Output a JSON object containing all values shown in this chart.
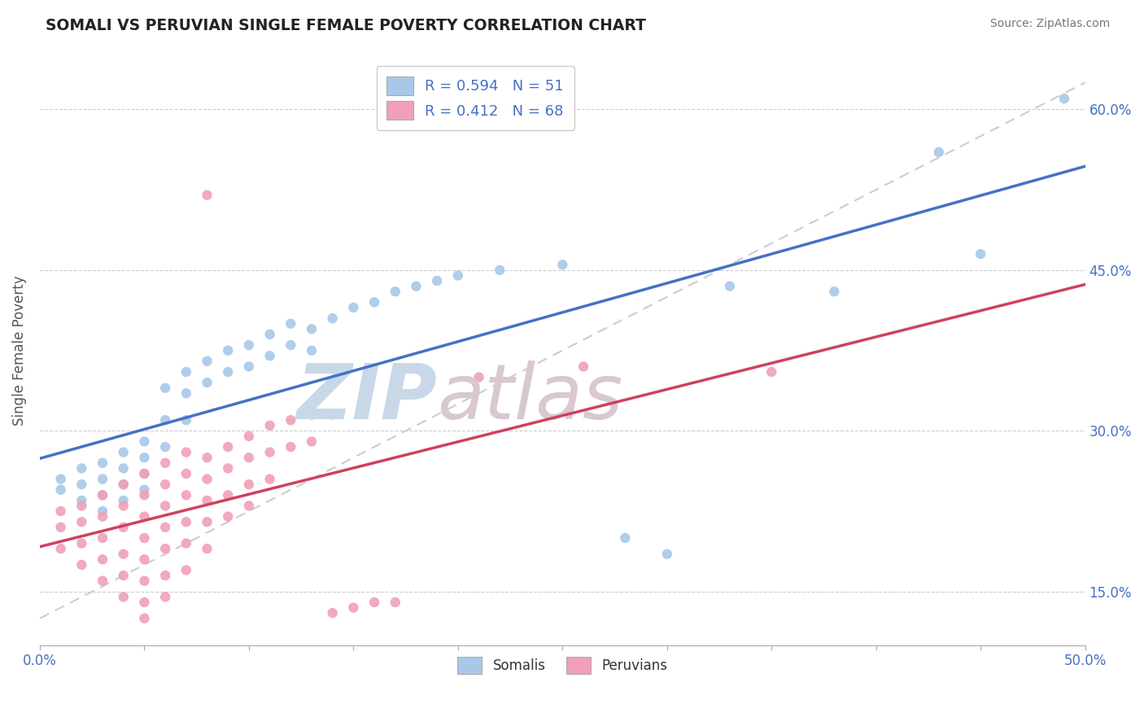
{
  "title": "SOMALI VS PERUVIAN SINGLE FEMALE POVERTY CORRELATION CHART",
  "source_text": "Source: ZipAtlas.com",
  "ylabel": "Single Female Poverty",
  "xlim": [
    0.0,
    0.5
  ],
  "ylim": [
    0.1,
    0.65
  ],
  "xtick_positions": [
    0.0,
    0.05,
    0.1,
    0.15,
    0.2,
    0.25,
    0.3,
    0.35,
    0.4,
    0.45,
    0.5
  ],
  "xticklabels": [
    "0.0%",
    "",
    "",
    "",
    "",
    "",
    "",
    "",
    "",
    "",
    "50.0%"
  ],
  "ytick_positions": [
    0.15,
    0.3,
    0.45,
    0.6
  ],
  "ytick_labels": [
    "15.0%",
    "30.0%",
    "45.0%",
    "60.0%"
  ],
  "somali_color": "#A8C8E8",
  "peruvian_color": "#F0A0B8",
  "somali_line_color": "#4472C4",
  "peruvian_line_color": "#D04060",
  "ref_line_color": "#CCCCCC",
  "legend_somali_label": "R = 0.594   N = 51",
  "legend_peruvian_label": "R = 0.412   N = 68",
  "legend_color": "#4472C4",
  "watermark_zip_color": "#C8D8E8",
  "watermark_atlas_color": "#D8C8D0",
  "somali_scatter": [
    [
      0.01,
      0.255
    ],
    [
      0.01,
      0.245
    ],
    [
      0.02,
      0.265
    ],
    [
      0.02,
      0.25
    ],
    [
      0.02,
      0.235
    ],
    [
      0.03,
      0.27
    ],
    [
      0.03,
      0.255
    ],
    [
      0.03,
      0.24
    ],
    [
      0.03,
      0.225
    ],
    [
      0.04,
      0.28
    ],
    [
      0.04,
      0.265
    ],
    [
      0.04,
      0.25
    ],
    [
      0.04,
      0.235
    ],
    [
      0.05,
      0.29
    ],
    [
      0.05,
      0.275
    ],
    [
      0.05,
      0.26
    ],
    [
      0.05,
      0.245
    ],
    [
      0.06,
      0.34
    ],
    [
      0.06,
      0.31
    ],
    [
      0.06,
      0.285
    ],
    [
      0.07,
      0.355
    ],
    [
      0.07,
      0.335
    ],
    [
      0.07,
      0.31
    ],
    [
      0.08,
      0.365
    ],
    [
      0.08,
      0.345
    ],
    [
      0.09,
      0.375
    ],
    [
      0.09,
      0.355
    ],
    [
      0.1,
      0.38
    ],
    [
      0.1,
      0.36
    ],
    [
      0.11,
      0.39
    ],
    [
      0.11,
      0.37
    ],
    [
      0.12,
      0.4
    ],
    [
      0.12,
      0.38
    ],
    [
      0.13,
      0.395
    ],
    [
      0.13,
      0.375
    ],
    [
      0.14,
      0.405
    ],
    [
      0.15,
      0.415
    ],
    [
      0.16,
      0.42
    ],
    [
      0.17,
      0.43
    ],
    [
      0.18,
      0.435
    ],
    [
      0.19,
      0.44
    ],
    [
      0.2,
      0.445
    ],
    [
      0.22,
      0.45
    ],
    [
      0.25,
      0.455
    ],
    [
      0.28,
      0.2
    ],
    [
      0.3,
      0.185
    ],
    [
      0.33,
      0.435
    ],
    [
      0.38,
      0.43
    ],
    [
      0.43,
      0.56
    ],
    [
      0.45,
      0.465
    ],
    [
      0.49,
      0.61
    ]
  ],
  "peruvian_scatter": [
    [
      0.01,
      0.225
    ],
    [
      0.01,
      0.21
    ],
    [
      0.01,
      0.19
    ],
    [
      0.02,
      0.23
    ],
    [
      0.02,
      0.215
    ],
    [
      0.02,
      0.195
    ],
    [
      0.02,
      0.175
    ],
    [
      0.03,
      0.24
    ],
    [
      0.03,
      0.22
    ],
    [
      0.03,
      0.2
    ],
    [
      0.03,
      0.18
    ],
    [
      0.03,
      0.16
    ],
    [
      0.04,
      0.25
    ],
    [
      0.04,
      0.23
    ],
    [
      0.04,
      0.21
    ],
    [
      0.04,
      0.185
    ],
    [
      0.04,
      0.165
    ],
    [
      0.04,
      0.145
    ],
    [
      0.05,
      0.26
    ],
    [
      0.05,
      0.24
    ],
    [
      0.05,
      0.22
    ],
    [
      0.05,
      0.2
    ],
    [
      0.05,
      0.18
    ],
    [
      0.05,
      0.16
    ],
    [
      0.05,
      0.14
    ],
    [
      0.05,
      0.125
    ],
    [
      0.06,
      0.27
    ],
    [
      0.06,
      0.25
    ],
    [
      0.06,
      0.23
    ],
    [
      0.06,
      0.21
    ],
    [
      0.06,
      0.19
    ],
    [
      0.06,
      0.165
    ],
    [
      0.06,
      0.145
    ],
    [
      0.07,
      0.28
    ],
    [
      0.07,
      0.26
    ],
    [
      0.07,
      0.24
    ],
    [
      0.07,
      0.215
    ],
    [
      0.07,
      0.195
    ],
    [
      0.07,
      0.17
    ],
    [
      0.08,
      0.275
    ],
    [
      0.08,
      0.255
    ],
    [
      0.08,
      0.235
    ],
    [
      0.08,
      0.215
    ],
    [
      0.08,
      0.19
    ],
    [
      0.09,
      0.285
    ],
    [
      0.09,
      0.265
    ],
    [
      0.09,
      0.24
    ],
    [
      0.09,
      0.22
    ],
    [
      0.1,
      0.295
    ],
    [
      0.1,
      0.275
    ],
    [
      0.1,
      0.25
    ],
    [
      0.1,
      0.23
    ],
    [
      0.11,
      0.305
    ],
    [
      0.11,
      0.28
    ],
    [
      0.11,
      0.255
    ],
    [
      0.12,
      0.31
    ],
    [
      0.12,
      0.285
    ],
    [
      0.13,
      0.315
    ],
    [
      0.13,
      0.29
    ],
    [
      0.14,
      0.315
    ],
    [
      0.14,
      0.13
    ],
    [
      0.15,
      0.135
    ],
    [
      0.16,
      0.14
    ],
    [
      0.17,
      0.14
    ],
    [
      0.08,
      0.52
    ],
    [
      0.21,
      0.35
    ],
    [
      0.26,
      0.36
    ],
    [
      0.35,
      0.355
    ]
  ]
}
